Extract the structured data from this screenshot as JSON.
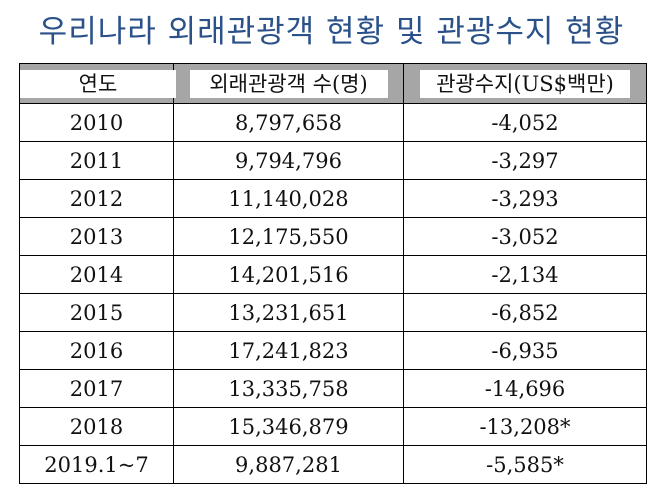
{
  "title": "우리나라 외래관광객 현황 및 관광수지 현황",
  "columns": [
    "연도",
    "외래관광객 수(명)",
    "관광수지(US$백만)"
  ],
  "rows": [
    {
      "year": "2010",
      "visitors": "8,797,658",
      "balance": "-4,052"
    },
    {
      "year": "2011",
      "visitors": "9,794,796",
      "balance": "-3,297"
    },
    {
      "year": "2012",
      "visitors": "11,140,028",
      "balance": "-3,293"
    },
    {
      "year": "2013",
      "visitors": "12,175,550",
      "balance": "-3,052"
    },
    {
      "year": "2014",
      "visitors": "14,201,516",
      "balance": "-2,134"
    },
    {
      "year": "2015",
      "visitors": "13,231,651",
      "balance": "-6,852"
    },
    {
      "year": "2016",
      "visitors": "17,241,823",
      "balance": "-6,935"
    },
    {
      "year": "2017",
      "visitors": "13,335,758",
      "balance": "-14,696"
    },
    {
      "year": "2018",
      "visitors": "15,346,879",
      "balance": "-13,208*"
    },
    {
      "year": "2019.1~7",
      "visitors": "9,887,281",
      "balance": "-5,585*"
    }
  ],
  "colors": {
    "title": "#2a5189",
    "header_bg": "#a6a6a6",
    "header_label_bg": "#ffffff",
    "border": "#000000"
  }
}
